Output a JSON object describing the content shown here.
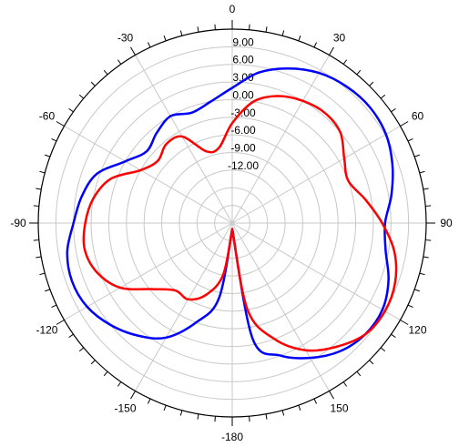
{
  "chart_data": {
    "type": "line",
    "polar": true,
    "angle_unit": "degrees",
    "angle_zero": "top",
    "angle_direction": "clockwise",
    "angle_ticks": [
      0,
      30,
      60,
      90,
      120,
      150,
      -180,
      -150,
      -120,
      -90,
      -60,
      -30
    ],
    "angle_tick_labels": [
      "0",
      "30",
      "60",
      "90",
      "120",
      "150",
      "-180",
      "-150",
      "-120",
      "-90",
      "-60",
      "-30"
    ],
    "radial_range": [
      -21,
      12
    ],
    "radial_ticks": [
      9,
      6,
      3,
      0,
      -3,
      -6,
      -9,
      -12
    ],
    "radial_tick_labels": [
      "9.00",
      "6.00",
      "3.00",
      "0.00",
      "-3.00",
      "-6.00",
      "-9.00",
      "-12.00"
    ],
    "grid": true,
    "grid_angle_step": 30,
    "grid_ring_step": 3,
    "series": [
      {
        "color": "#0000ff",
        "points": [
          [
            -180,
            -20
          ],
          [
            -170,
            -8
          ],
          [
            -160,
            -3
          ],
          [
            -150,
            1.5
          ],
          [
            -140,
            4
          ],
          [
            -130,
            6
          ],
          [
            -120,
            7.5
          ],
          [
            -110,
            8
          ],
          [
            -100,
            7.5
          ],
          [
            -90,
            6
          ],
          [
            -80,
            5
          ],
          [
            -70,
            3.5
          ],
          [
            -60,
            0
          ],
          [
            -50,
            -2
          ],
          [
            -40,
            -1
          ],
          [
            -30,
            0
          ],
          [
            -20,
            -1
          ],
          [
            -10,
            0
          ],
          [
            0,
            2
          ],
          [
            10,
            5
          ],
          [
            20,
            7
          ],
          [
            30,
            8.5
          ],
          [
            40,
            9.3
          ],
          [
            50,
            9.6
          ],
          [
            60,
            9.2
          ],
          [
            70,
            8
          ],
          [
            80,
            6.5
          ],
          [
            90,
            5
          ],
          [
            100,
            5.5
          ],
          [
            110,
            7.3
          ],
          [
            120,
            8.5
          ],
          [
            130,
            8.5
          ],
          [
            140,
            7.5
          ],
          [
            150,
            5.5
          ],
          [
            160,
            3
          ],
          [
            170,
            -1
          ],
          [
            180,
            -20
          ]
        ]
      },
      {
        "color": "#ff0000",
        "points": [
          [
            -180,
            -20
          ],
          [
            -170,
            -12
          ],
          [
            -160,
            -8
          ],
          [
            -150,
            -6
          ],
          [
            -140,
            -6
          ],
          [
            -130,
            -3.5
          ],
          [
            -120,
            1
          ],
          [
            -110,
            3.5
          ],
          [
            -100,
            4.5
          ],
          [
            -90,
            4
          ],
          [
            -80,
            3
          ],
          [
            -70,
            1
          ],
          [
            -60,
            -3
          ],
          [
            -50,
            -4.5
          ],
          [
            -40,
            -3.5
          ],
          [
            -30,
            -4
          ],
          [
            -20,
            -8
          ],
          [
            -10,
            -8
          ],
          [
            0,
            -4
          ],
          [
            10,
            0
          ],
          [
            20,
            2
          ],
          [
            30,
            3
          ],
          [
            40,
            3.5
          ],
          [
            50,
            3
          ],
          [
            60,
            1
          ],
          [
            70,
            0
          ],
          [
            80,
            2
          ],
          [
            90,
            4.5
          ],
          [
            100,
            7
          ],
          [
            110,
            8.5
          ],
          [
            120,
            9
          ],
          [
            130,
            8.5
          ],
          [
            140,
            6.5
          ],
          [
            150,
            4
          ],
          [
            160,
            0
          ],
          [
            170,
            -6
          ],
          [
            180,
            -20
          ]
        ]
      }
    ]
  }
}
